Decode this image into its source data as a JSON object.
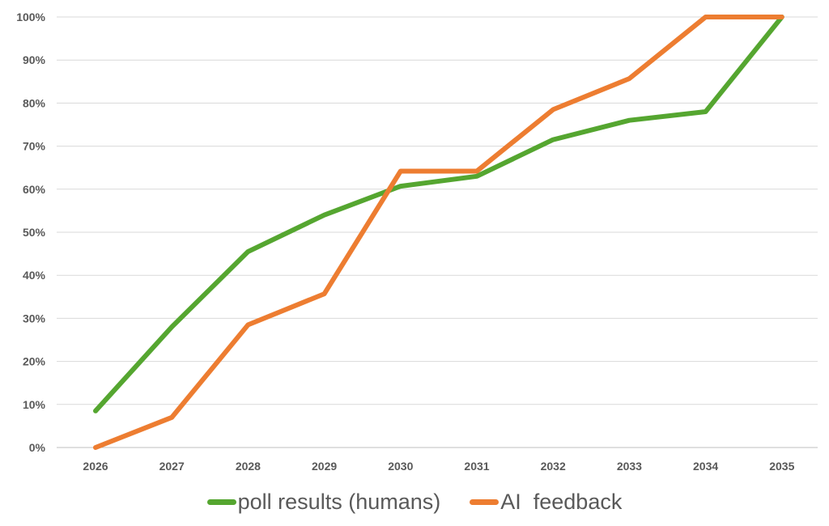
{
  "chart_data": {
    "type": "line",
    "title": "",
    "xlabel": "",
    "ylabel": "",
    "x": [
      "2026",
      "2027",
      "2028",
      "2029",
      "2030",
      "2031",
      "2032",
      "2033",
      "2034",
      "2035"
    ],
    "ylim": [
      0,
      100
    ],
    "yticks": [
      "0%",
      "10%",
      "20%",
      "30%",
      "40%",
      "50%",
      "60%",
      "70%",
      "80%",
      "90%",
      "100%"
    ],
    "grid": true,
    "legend_position": "bottom",
    "series": [
      {
        "name": "poll results (humans)",
        "color": "#55a630",
        "values": [
          8.5,
          28,
          45.5,
          54,
          60.7,
          63,
          71.5,
          76,
          78,
          100
        ]
      },
      {
        "name": "AI  feedback",
        "color": "#ed7d31",
        "values": [
          0,
          7,
          28.5,
          35.7,
          64.2,
          64.2,
          78.5,
          85.7,
          100,
          100
        ]
      }
    ]
  }
}
